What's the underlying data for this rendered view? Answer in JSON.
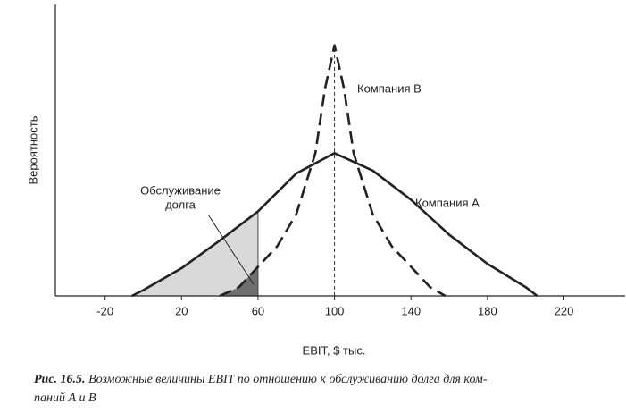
{
  "chart_data": {
    "type": "line",
    "y_label": "Вероятность",
    "x_label": "EBIT, $ тыс.",
    "xlim": [
      -46,
      252
    ],
    "xticks": [
      -20,
      20,
      60,
      100,
      140,
      180,
      220
    ],
    "ylim": [
      0,
      1
    ],
    "debt_service_label_lines": [
      "Обслуживание",
      "долга"
    ],
    "debt_service_level": 60,
    "center_line_x": 100,
    "series": [
      {
        "name": "Компания А",
        "color": "#222222",
        "dashed": false,
        "shade": "#d9d9d9",
        "x": [
          -6,
          0,
          20,
          40,
          60,
          80,
          100,
          120,
          140,
          160,
          180,
          200,
          206
        ],
        "values": [
          0,
          0.02,
          0.095,
          0.19,
          0.29,
          0.42,
          0.49,
          0.43,
          0.33,
          0.21,
          0.11,
          0.03,
          0
        ]
      },
      {
        "name": "Компания В",
        "color": "#222222",
        "dashed": true,
        "shade": "#6e6e6e",
        "x": [
          40,
          50,
          60,
          70,
          80,
          90,
          95,
          100,
          105,
          110,
          120,
          130,
          140,
          150,
          158
        ],
        "values": [
          0,
          0.03,
          0.1,
          0.17,
          0.28,
          0.49,
          0.71,
          0.86,
          0.71,
          0.49,
          0.28,
          0.17,
          0.1,
          0.03,
          0
        ]
      }
    ]
  },
  "caption": {
    "label": "Рис. 16.5.",
    "lines": [
      "Возможные величины EBIT по отношению к обслуживанию долга для ком-",
      "паний А и В"
    ]
  }
}
